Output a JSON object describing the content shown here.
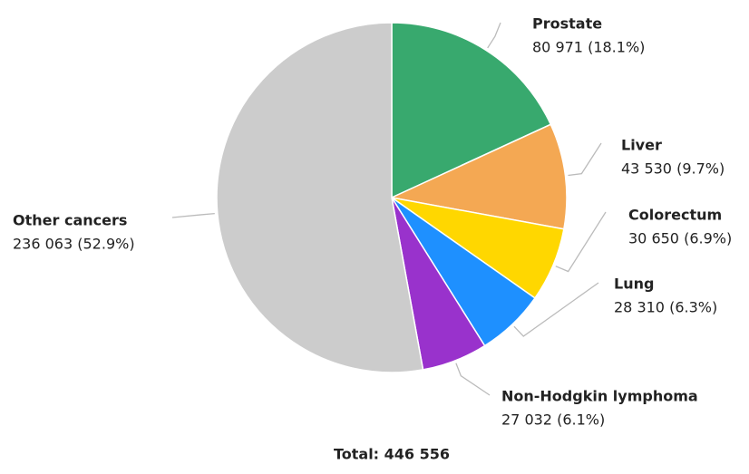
{
  "chart_data": {
    "type": "pie",
    "categories": [
      "Prostate",
      "Liver",
      "Colorectum",
      "Lung",
      "Non-Hodgkin lymphoma",
      "Other cancers"
    ],
    "values": [
      80971,
      43530,
      30650,
      28310,
      27032,
      236063
    ],
    "value_labels": [
      "80 971 (18.1%)",
      "43 530 (9.7%)",
      "30 650 (6.9%)",
      "28 310 (6.3%)",
      "27 032 (6.1%)",
      "236 063 (52.9%)"
    ],
    "colors": [
      "#38a96e",
      "#f4a853",
      "#ffd700",
      "#1e90ff",
      "#9932cc",
      "#cccccc"
    ],
    "total": "Total: 446 556"
  }
}
